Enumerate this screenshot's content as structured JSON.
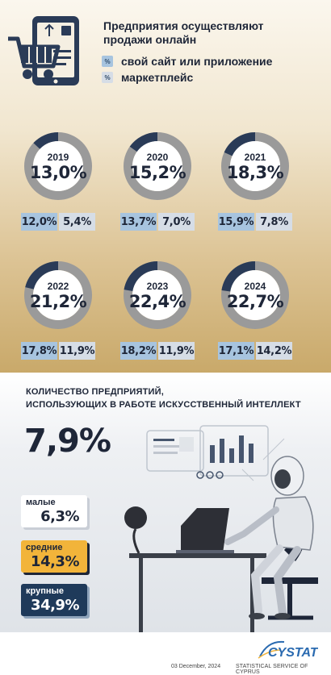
{
  "online_sales": {
    "headline_line1": "Предприятия осуществляют",
    "headline_line2": "продажи онлайн",
    "legend": [
      {
        "symbol": "%",
        "label": "свой сайт или приложение",
        "color": "#a7c4df"
      },
      {
        "symbol": "%",
        "label": "маркетплейс",
        "color": "#d6dde6"
      }
    ],
    "years": [
      {
        "year": "2019",
        "total": "13,0%",
        "total_value": 13.0,
        "site": "12,0%",
        "market": "5,4%"
      },
      {
        "year": "2020",
        "total": "15,2%",
        "total_value": 15.2,
        "site": "13,7%",
        "market": "7,0%"
      },
      {
        "year": "2021",
        "total": "18,3%",
        "total_value": 18.3,
        "site": "15,9%",
        "market": "7,8%"
      },
      {
        "year": "2022",
        "total": "21,2%",
        "total_value": 21.2,
        "site": "17,8%",
        "market": "11,9%"
      },
      {
        "year": "2023",
        "total": "22,4%",
        "total_value": 22.4,
        "site": "18,2%",
        "market": "11,9%"
      },
      {
        "year": "2024",
        "total": "22,7%",
        "total_value": 22.7,
        "site": "17,1%",
        "market": "14,2%"
      }
    ],
    "colors": {
      "donut_fill": "#2a3b57",
      "donut_track": "#9a9a9a"
    }
  },
  "ai_usage": {
    "title_line1": "КОЛИЧЕСТВО ПРЕДПРИЯТИЙ,",
    "title_line2": "ИСПОЛЬЗУЮЩИХ В РАБОТЕ ИСКУССТВЕННЫЙ ИНТЕЛЛЕКТ",
    "total": "7,9%",
    "by_size": [
      {
        "label": "малые",
        "value": "6,3%"
      },
      {
        "label": "средние",
        "value": "14,3%"
      },
      {
        "label": "крупные",
        "value": "34,9%"
      }
    ]
  },
  "footer": {
    "date": "03 December, 2024",
    "org": "STATISTICAL SERVICE OF CYPRUS",
    "logo_text": "CYSTAT"
  }
}
